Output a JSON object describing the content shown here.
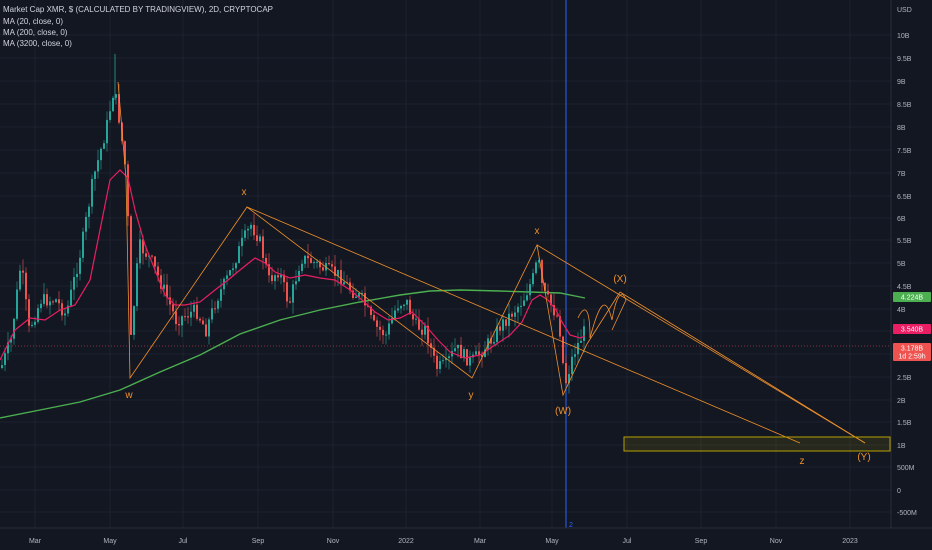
{
  "header": {
    "line1": "Market Cap XMR, $ (CALCULATED BY TRADINGVIEW), 2D, CRYPTOCAP",
    "line2": "MA (20, close, 0)",
    "line3": "MA (200, close, 0)",
    "line4": "MA (3200, close, 0)"
  },
  "colors": {
    "background": "#131722",
    "up": "#26a69a",
    "down": "#ef5350",
    "ma20": "#e91e63",
    "ma200": "#4caf50",
    "wave": "#f0902c",
    "cursor": "#2962ff",
    "target_box": "#b8a000"
  },
  "chart_data": {
    "type": "candlestick",
    "currency": "USD",
    "y_axis": {
      "scale": "log",
      "ticks": [
        "10B",
        "9.5B",
        "9B",
        "8.5B",
        "8B",
        "7.5B",
        "7B",
        "6.5B",
        "6B",
        "5.5B",
        "5B",
        "4.5B",
        "4B",
        "3.5B",
        "3B",
        "2.5B",
        "2B",
        "1.5B",
        "1B",
        "500M",
        "0",
        "-500M"
      ],
      "unit_label": "USD"
    },
    "x_axis": {
      "ticks": [
        "Mar",
        "May",
        "Jul",
        "Sep",
        "Nov",
        "2022",
        "Mar",
        "May",
        "Jul",
        "Sep",
        "Nov",
        "2023"
      ]
    },
    "price_tags": [
      {
        "label": "4.224B",
        "color": "#4caf50"
      },
      {
        "label": "3.540B",
        "color": "#e91e63"
      },
      {
        "label": "3.178B",
        "sub": "1d 2:59h",
        "color": "#ef5350"
      }
    ],
    "cursor_badge": "2",
    "series": [
      {
        "name": "MA (20, close, 0)",
        "color": "#e91e63"
      },
      {
        "name": "MA (200, close, 0)",
        "color": "#4caf50"
      },
      {
        "name": "MA (3200, close, 0)",
        "color": "#4caf50"
      }
    ],
    "wave_labels": [
      "w",
      "x",
      "y",
      "x",
      "(W)",
      "(X)",
      "z",
      "(Y)"
    ]
  }
}
